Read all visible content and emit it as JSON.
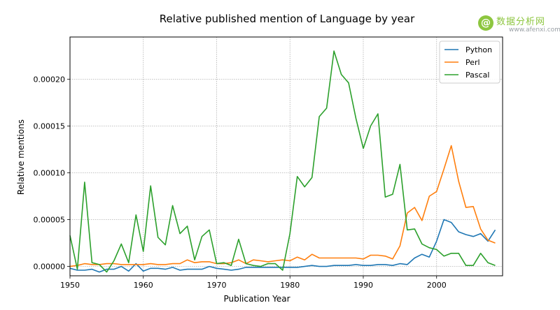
{
  "watermark": {
    "text": "数据分析网",
    "url": "www.afenxi.com",
    "icon": "at-sign-icon",
    "color": "#8dc63f"
  },
  "chart_data": {
    "type": "line",
    "title": "Relative published mention of Language by year",
    "xlabel": "Publication Year",
    "ylabel": "Relative mentions",
    "xlim": [
      1950,
      2009
    ],
    "ylim": [
      -1e-05,
      0.000245
    ],
    "xticks": [
      1950,
      1960,
      1970,
      1980,
      1990,
      2000
    ],
    "xtick_labels": [
      "1950",
      "1960",
      "1970",
      "1980",
      "1990",
      "2000"
    ],
    "yticks": [
      0,
      5e-05,
      0.0001,
      0.00015,
      0.0002
    ],
    "ytick_labels": [
      "0.00000",
      "0.00005",
      "0.00010",
      "0.00015",
      "0.00020"
    ],
    "grid": true,
    "legend_position": "top-right",
    "x": [
      1950,
      1951,
      1952,
      1953,
      1954,
      1955,
      1956,
      1957,
      1958,
      1959,
      1960,
      1961,
      1962,
      1963,
      1964,
      1965,
      1966,
      1967,
      1968,
      1969,
      1970,
      1971,
      1972,
      1973,
      1974,
      1975,
      1976,
      1977,
      1978,
      1979,
      1980,
      1981,
      1982,
      1983,
      1984,
      1985,
      1986,
      1987,
      1988,
      1989,
      1990,
      1991,
      1992,
      1993,
      1994,
      1995,
      1996,
      1997,
      1998,
      1999,
      2000,
      2001,
      2002,
      2003,
      2004,
      2005,
      2006,
      2007,
      2008
    ],
    "series": [
      {
        "name": "Python",
        "color": "#1f77b4",
        "values": [
          -2e-06,
          -4e-06,
          -4e-06,
          -3e-06,
          -6e-06,
          -3e-06,
          -3e-06,
          0,
          -5e-06,
          3e-06,
          -5e-06,
          -2e-06,
          -2e-06,
          -3e-06,
          -1e-06,
          -4e-06,
          -3e-06,
          -3e-06,
          -3e-06,
          0,
          -2e-06,
          -3e-06,
          -4e-06,
          -3e-06,
          -1e-06,
          -1e-06,
          -1e-06,
          -1e-06,
          -1e-06,
          -1e-06,
          -1e-06,
          -1e-06,
          0,
          1e-06,
          0,
          0,
          1e-06,
          1e-06,
          1e-06,
          2e-06,
          1e-06,
          1e-06,
          2e-06,
          2e-06,
          1e-06,
          3e-06,
          2e-06,
          9e-06,
          1.3e-05,
          1e-05,
          2.7e-05,
          5e-05,
          4.7e-05,
          3.7e-05,
          3.4e-05,
          3.2e-05,
          3.5e-05,
          2.7e-05,
          3.9e-05
        ]
      },
      {
        "name": "Perl",
        "color": "#ff7f0e",
        "values": [
          0,
          1e-06,
          3e-06,
          2e-06,
          2e-06,
          3e-06,
          3e-06,
          2e-06,
          2e-06,
          2e-06,
          2e-06,
          3e-06,
          2e-06,
          2e-06,
          3e-06,
          3e-06,
          7e-06,
          4e-06,
          5e-06,
          5e-06,
          3e-06,
          3e-06,
          4e-06,
          7e-06,
          3e-06,
          7e-06,
          6e-06,
          5e-06,
          6e-06,
          7e-06,
          6e-06,
          1e-05,
          7e-06,
          1.3e-05,
          9e-06,
          9e-06,
          9e-06,
          9e-06,
          9e-06,
          9e-06,
          8e-06,
          1.2e-05,
          1.2e-05,
          1.1e-05,
          8e-06,
          2.2e-05,
          5.7e-05,
          6.3e-05,
          4.9e-05,
          7.5e-05,
          8e-05,
          0.000104,
          0.000129,
          9.1e-05,
          6.3e-05,
          6.4e-05,
          4e-05,
          2.8e-05,
          2.5e-05
        ]
      },
      {
        "name": "Pascal",
        "color": "#2ca02c",
        "values": [
          3.3e-05,
          -3e-06,
          9e-05,
          4e-06,
          2e-06,
          -6e-06,
          6e-06,
          2.4e-05,
          4e-06,
          5.5e-05,
          1.6e-05,
          8.6e-05,
          3.1e-05,
          2.3e-05,
          6.5e-05,
          3.5e-05,
          4.3e-05,
          7e-06,
          3.2e-05,
          3.9e-05,
          3e-06,
          4e-06,
          1e-06,
          2.9e-05,
          3e-06,
          1e-06,
          0,
          3e-06,
          3e-06,
          -4e-06,
          3.5e-05,
          9.6e-05,
          8.5e-05,
          9.5e-05,
          0.00016,
          0.000169,
          0.00023,
          0.000205,
          0.000196,
          0.000158,
          0.000126,
          0.00015,
          0.000163,
          7.4e-05,
          7.7e-05,
          0.000109,
          3.9e-05,
          4e-05,
          2.4e-05,
          2e-05,
          1.8e-05,
          1.1e-05,
          1.4e-05,
          1.4e-05,
          1e-06,
          1e-06,
          1.4e-05,
          4e-06,
          1e-06
        ]
      }
    ]
  }
}
